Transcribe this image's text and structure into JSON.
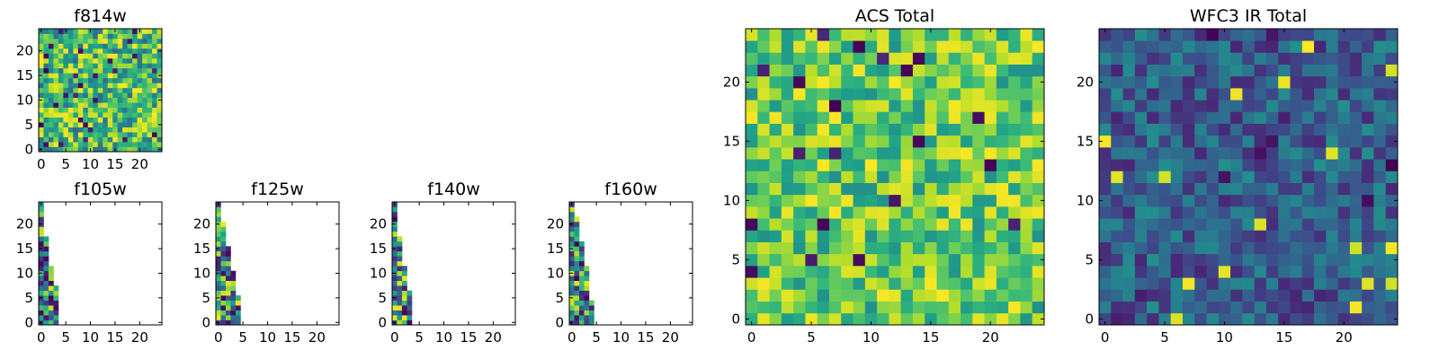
{
  "chart_data": [
    {
      "type": "heatmap",
      "title": "f814w",
      "xticks": [
        "0",
        "5",
        "10",
        "15",
        "20"
      ],
      "yticks": [
        "0",
        "5",
        "10",
        "15",
        "20"
      ],
      "xlim": [
        -0.5,
        24.5
      ],
      "ylim": [
        -0.5,
        24.5
      ],
      "cmap": "viridis",
      "fill": "dense",
      "seed": 11,
      "range": [
        0.35,
        1.0
      ]
    },
    {
      "type": "heatmap",
      "title": "f105w",
      "xticks": [
        "0",
        "5",
        "10",
        "15",
        "20"
      ],
      "yticks": [
        "0",
        "5",
        "10",
        "15",
        "20"
      ],
      "xlim": [
        -0.5,
        24.5
      ],
      "ylim": [
        -0.5,
        24.5
      ],
      "cmap": "viridis",
      "fill": "wedge",
      "seed": 23,
      "range": [
        0.0,
        1.0
      ],
      "row_widths": [
        4,
        4,
        4,
        4,
        4,
        4,
        4,
        4,
        3,
        3,
        3,
        3,
        2,
        2,
        2,
        2,
        2,
        2,
        1,
        1,
        1,
        1,
        1,
        1,
        1
      ]
    },
    {
      "type": "heatmap",
      "title": "f125w",
      "xticks": [
        "0",
        "5",
        "10",
        "15",
        "20"
      ],
      "yticks": [
        "0",
        "5",
        "10",
        "15",
        "20"
      ],
      "xlim": [
        -0.5,
        24.5
      ],
      "ylim": [
        -0.5,
        24.5
      ],
      "cmap": "viridis",
      "fill": "wedge",
      "seed": 37,
      "range": [
        0.0,
        1.0
      ],
      "row_widths": [
        5,
        5,
        5,
        5,
        5,
        5,
        4,
        4,
        4,
        4,
        4,
        3,
        3,
        3,
        3,
        3,
        2,
        2,
        2,
        2,
        2,
        1,
        1,
        1,
        1
      ]
    },
    {
      "type": "heatmap",
      "title": "f140w",
      "xticks": [
        "0",
        "5",
        "10",
        "15",
        "20"
      ],
      "yticks": [
        "0",
        "5",
        "10",
        "15",
        "20"
      ],
      "xlim": [
        -0.5,
        24.5
      ],
      "ylim": [
        -0.5,
        24.5
      ],
      "cmap": "viridis",
      "fill": "wedge",
      "seed": 41,
      "range": [
        0.0,
        1.0
      ],
      "row_widths": [
        4,
        4,
        4,
        4,
        4,
        4,
        4,
        3,
        3,
        3,
        3,
        3,
        2,
        2,
        2,
        2,
        2,
        2,
        1,
        1,
        1,
        1,
        1,
        1,
        1
      ]
    },
    {
      "type": "heatmap",
      "title": "f160w",
      "xticks": [
        "0",
        "5",
        "10",
        "15",
        "20"
      ],
      "yticks": [
        "0",
        "5",
        "10",
        "15",
        "20"
      ],
      "xlim": [
        -0.5,
        24.5
      ],
      "ylim": [
        -0.5,
        24.5
      ],
      "cmap": "viridis",
      "fill": "wedge",
      "seed": 53,
      "range": [
        0.0,
        1.0
      ],
      "row_widths": [
        5,
        5,
        5,
        5,
        5,
        4,
        4,
        4,
        4,
        4,
        4,
        4,
        3,
        3,
        3,
        3,
        3,
        2,
        2,
        2,
        2,
        2,
        1,
        1,
        1
      ]
    },
    {
      "type": "heatmap",
      "title": "ACS Total",
      "xticks": [
        "0",
        "5",
        "10",
        "15",
        "20"
      ],
      "yticks": [
        "0",
        "5",
        "10",
        "15",
        "20"
      ],
      "xlim": [
        -0.5,
        24.5
      ],
      "ylim": [
        -0.5,
        24.5
      ],
      "cmap": "viridis",
      "fill": "dense",
      "seed": 61,
      "range": [
        0.5,
        1.0
      ]
    },
    {
      "type": "heatmap",
      "title": "WFC3 IR Total",
      "xticks": [
        "0",
        "5",
        "10",
        "15",
        "20"
      ],
      "yticks": [
        "0",
        "5",
        "10",
        "15",
        "20"
      ],
      "xlim": [
        -0.5,
        24.5
      ],
      "ylim": [
        -0.5,
        24.5
      ],
      "cmap": "viridis",
      "fill": "dense",
      "seed": 79,
      "range": [
        0.1,
        0.5
      ]
    }
  ]
}
